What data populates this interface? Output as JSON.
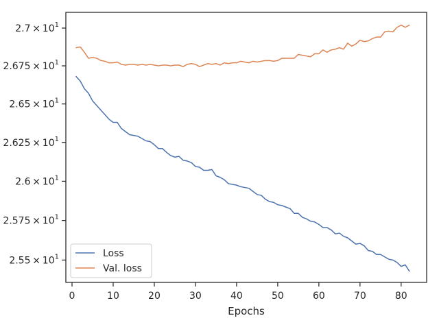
{
  "chart_data": {
    "type": "line",
    "title": "",
    "xlabel": "Epochs",
    "ylabel": "",
    "xlim": [
      -1.5,
      86.2
    ],
    "ylim": [
      25.36,
      27.105
    ],
    "y_scale": "log",
    "grid": false,
    "legend_position": "lower-left",
    "xticks": [
      {
        "value": 0,
        "label": "0"
      },
      {
        "value": 10,
        "label": "10"
      },
      {
        "value": 20,
        "label": "20"
      },
      {
        "value": 30,
        "label": "30"
      },
      {
        "value": 40,
        "label": "40"
      },
      {
        "value": 50,
        "label": "50"
      },
      {
        "value": 60,
        "label": "60"
      },
      {
        "value": 70,
        "label": "70"
      },
      {
        "value": 80,
        "label": "80"
      }
    ],
    "yticks": [
      {
        "value": 25.5,
        "mantissa": "2.55"
      },
      {
        "value": 25.75,
        "mantissa": "2.575"
      },
      {
        "value": 26.0,
        "mantissa": "2.6"
      },
      {
        "value": 26.25,
        "mantissa": "2.625"
      },
      {
        "value": 26.5,
        "mantissa": "2.65"
      },
      {
        "value": 26.75,
        "mantissa": "2.675"
      },
      {
        "value": 27.0,
        "mantissa": "2.7"
      }
    ],
    "ytick_exponent_base": "10",
    "ytick_exponent": "1",
    "x": [
      1,
      2,
      3,
      4,
      5,
      6,
      7,
      8,
      9,
      10,
      11,
      12,
      13,
      14,
      15,
      16,
      17,
      18,
      19,
      20,
      21,
      22,
      23,
      24,
      25,
      26,
      27,
      28,
      29,
      30,
      31,
      32,
      33,
      34,
      35,
      36,
      37,
      38,
      39,
      40,
      41,
      42,
      43,
      44,
      45,
      46,
      47,
      48,
      49,
      50,
      51,
      52,
      53,
      54,
      55,
      56,
      57,
      58,
      59,
      60,
      61,
      62,
      63,
      64,
      65,
      66,
      67,
      68,
      69,
      70,
      71,
      72,
      73,
      74,
      75,
      76,
      77,
      78,
      79,
      80,
      81,
      82
    ],
    "series": [
      {
        "name": "Loss",
        "color": "#4c72b0",
        "values": [
          26.68,
          26.65,
          26.6,
          26.57,
          26.52,
          26.49,
          26.46,
          26.43,
          26.4,
          26.38,
          26.38,
          26.34,
          26.32,
          26.3,
          26.295,
          26.29,
          26.275,
          26.26,
          26.255,
          26.235,
          26.21,
          26.21,
          26.185,
          26.165,
          26.155,
          26.16,
          26.135,
          26.13,
          26.12,
          26.095,
          26.09,
          26.07,
          26.07,
          26.075,
          26.035,
          26.025,
          26.01,
          25.985,
          25.98,
          25.975,
          25.965,
          25.96,
          25.955,
          25.935,
          25.915,
          25.91,
          25.885,
          25.87,
          25.865,
          25.85,
          25.845,
          25.835,
          25.825,
          25.795,
          25.795,
          25.77,
          25.76,
          25.745,
          25.74,
          25.725,
          25.705,
          25.705,
          25.69,
          25.665,
          25.67,
          25.65,
          25.64,
          25.62,
          25.6,
          25.605,
          25.59,
          25.56,
          25.555,
          25.535,
          25.535,
          25.52,
          25.505,
          25.5,
          25.485,
          25.46,
          25.47,
          25.43
        ]
      },
      {
        "name": "Val. loss",
        "color": "#dd8452",
        "values": [
          26.87,
          26.875,
          26.84,
          26.8,
          26.805,
          26.8,
          26.785,
          26.78,
          26.77,
          26.77,
          26.775,
          26.76,
          26.755,
          26.76,
          26.76,
          26.755,
          26.76,
          26.755,
          26.76,
          26.755,
          26.75,
          26.755,
          26.755,
          26.75,
          26.755,
          26.755,
          26.745,
          26.76,
          26.765,
          26.76,
          26.745,
          26.755,
          26.765,
          26.76,
          26.765,
          26.755,
          26.77,
          26.765,
          26.77,
          26.77,
          26.78,
          26.775,
          26.77,
          26.78,
          26.775,
          26.78,
          26.785,
          26.785,
          26.78,
          26.785,
          26.8,
          26.8,
          26.8,
          26.8,
          26.825,
          26.82,
          26.815,
          26.81,
          26.83,
          26.83,
          26.855,
          26.84,
          26.855,
          26.86,
          26.87,
          26.86,
          26.9,
          26.88,
          26.895,
          26.92,
          26.91,
          26.915,
          26.93,
          26.94,
          26.94,
          26.975,
          26.98,
          26.975,
          27.005,
          27.02,
          27.005,
          27.02
        ]
      }
    ]
  }
}
